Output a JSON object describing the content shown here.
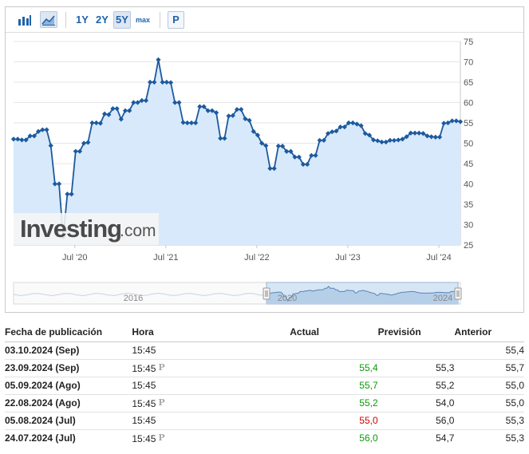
{
  "toolbar": {
    "ranges": [
      "1Y",
      "2Y",
      "5Y",
      "max"
    ],
    "active_range": "5Y",
    "p_label": "P",
    "icons": [
      "bar-chart-icon",
      "area-chart-icon"
    ]
  },
  "watermark": {
    "brand": "Investing",
    "tld": ".com"
  },
  "chart_data": {
    "type": "line",
    "series": [
      {
        "x": [
          0,
          1,
          2,
          3,
          4,
          5,
          6,
          7,
          8,
          9,
          10,
          11,
          12,
          13,
          14,
          15,
          16,
          17,
          18,
          19,
          20,
          21,
          22,
          23,
          24,
          25,
          26,
          27,
          28,
          29,
          30,
          31,
          32,
          33,
          34,
          35,
          36,
          37,
          38,
          39,
          40,
          41,
          42,
          43,
          44,
          45,
          46,
          47,
          48,
          49,
          50,
          51,
          52,
          53,
          54,
          55,
          56,
          57,
          58,
          59,
          60,
          61,
          62,
          63,
          64,
          65,
          66,
          67,
          68,
          69,
          70,
          71,
          72,
          73,
          74,
          75,
          76,
          77,
          78,
          79,
          80,
          81,
          82,
          83,
          84,
          85,
          86,
          87,
          88,
          89,
          90,
          91,
          92,
          93,
          94,
          95,
          96,
          97,
          98,
          99,
          100,
          101,
          102,
          103,
          104,
          105,
          106,
          107,
          108
        ],
        "values": [
          51.0,
          51.0,
          50.8,
          50.8,
          51.8,
          51.8,
          52.9,
          53.3,
          53.3,
          49.4,
          40.0,
          40.0,
          27.0,
          37.5,
          37.5,
          48.0,
          48.0,
          50.0,
          50.2,
          55.0,
          55.0,
          54.9,
          57.2,
          57.0,
          58.5,
          58.5,
          55.9,
          58.0,
          58.0,
          60.0,
          60.0,
          60.5,
          60.5,
          65.0,
          65.0,
          70.5,
          65.0,
          65.0,
          64.9,
          60.0,
          60.0,
          55.1,
          55.0,
          55.0,
          55.0,
          59.0,
          59.0,
          58.0,
          58.0,
          57.5,
          51.2,
          51.2,
          56.7,
          56.8,
          58.3,
          58.3,
          56.0,
          55.6,
          52.9,
          52.0,
          50.0,
          49.4,
          43.8,
          43.8,
          49.3,
          49.3,
          48.0,
          48.0,
          46.6,
          46.6,
          44.8,
          44.8,
          47.0,
          47.0,
          50.7,
          50.7,
          52.4,
          52.8,
          53.0,
          54.0,
          54.0,
          55.0,
          55.0,
          54.7,
          54.3,
          52.4,
          52.0,
          50.8,
          50.6,
          50.3,
          50.3,
          50.7,
          50.7,
          50.8,
          51.0,
          51.6,
          52.5,
          52.5,
          52.5,
          52.4,
          51.8,
          51.6,
          51.5,
          51.5,
          54.9,
          55.0,
          55.5,
          55.5,
          55.3
        ]
      }
    ],
    "x_ticks": [
      "Jul '20",
      "Jul '21",
      "Jul '22",
      "Jul '23",
      "Jul '24"
    ],
    "y_ticks": [
      "75",
      "70",
      "65",
      "60",
      "55",
      "50",
      "45",
      "40",
      "35",
      "30",
      "25"
    ],
    "ylim": [
      25,
      75
    ],
    "grid": "horizontal",
    "navigator": {
      "labels": [
        "2016",
        "2020",
        "2024"
      ]
    },
    "colors": {
      "line": "#1c5a9e",
      "fill": "#d8e9fb",
      "grid": "#e6e6e6"
    }
  },
  "table": {
    "headers": [
      "Fecha de publicación",
      "Hora",
      "Actual",
      "Previsión",
      "Anterior"
    ],
    "rows": [
      {
        "date": "03.10.2024 (Sep)",
        "time": "15:45",
        "prelim": false,
        "actual": "",
        "actual_status": "",
        "forecast": "",
        "previous": "55,4"
      },
      {
        "date": "23.09.2024 (Sep)",
        "time": "15:45",
        "prelim": true,
        "actual": "55,4",
        "actual_status": "pos",
        "forecast": "55,3",
        "previous": "55,7"
      },
      {
        "date": "05.09.2024 (Ago)",
        "time": "15:45",
        "prelim": false,
        "actual": "55,7",
        "actual_status": "pos",
        "forecast": "55,2",
        "previous": "55,0"
      },
      {
        "date": "22.08.2024 (Ago)",
        "time": "15:45",
        "prelim": true,
        "actual": "55,2",
        "actual_status": "pos",
        "forecast": "54,0",
        "previous": "55,0"
      },
      {
        "date": "05.08.2024 (Jul)",
        "time": "15:45",
        "prelim": false,
        "actual": "55,0",
        "actual_status": "neg",
        "forecast": "56,0",
        "previous": "55,3"
      },
      {
        "date": "24.07.2024 (Jul)",
        "time": "15:45",
        "prelim": true,
        "actual": "56,0",
        "actual_status": "pos",
        "forecast": "54,7",
        "previous": "55,3"
      }
    ]
  }
}
